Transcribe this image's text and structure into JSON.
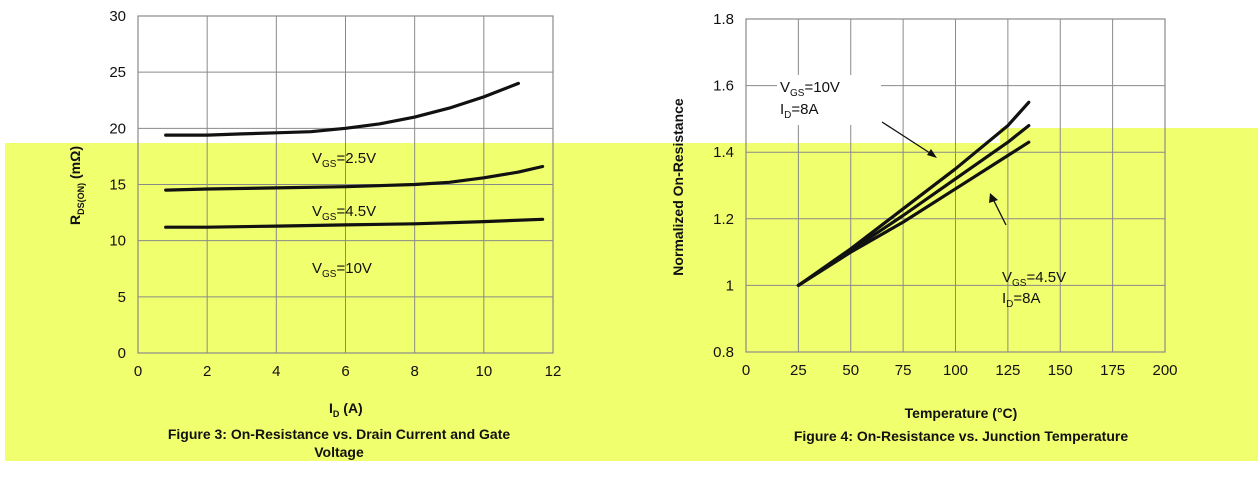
{
  "colors": {
    "highlight": "#f0ff6e",
    "line": "#111111",
    "grid": "#8a8a8a",
    "background": "#ffffff"
  },
  "chart_data": [
    {
      "type": "line",
      "xlabel_main": "I",
      "xlabel_sub": "D",
      "xlabel_unit": " (A)",
      "ylabel_main": "R",
      "ylabel_sub": "DS(ON)",
      "ylabel_unit": " (mΩ)",
      "caption_line1": "Figure 3: On-Resistance vs. Drain Current and Gate",
      "caption_line2": "Voltage",
      "xlim": [
        0,
        12
      ],
      "ylim": [
        0,
        30
      ],
      "xticks": [
        "0",
        "2",
        "4",
        "6",
        "8",
        "10",
        "12"
      ],
      "yticks": [
        "0",
        "5",
        "10",
        "15",
        "20",
        "25",
        "30"
      ],
      "grid": true,
      "series": [
        {
          "name": "VGS=2.5V",
          "x": [
            0.8,
            2,
            3,
            4,
            5,
            6,
            7,
            8,
            9,
            10,
            11
          ],
          "values": [
            19.4,
            19.4,
            19.5,
            19.6,
            19.7,
            20.0,
            20.4,
            21.0,
            21.8,
            22.8,
            24.0
          ]
        },
        {
          "name": "VGS=4.5V",
          "x": [
            0.8,
            2,
            4,
            6,
            8,
            9,
            10,
            11,
            11.7
          ],
          "values": [
            14.5,
            14.6,
            14.7,
            14.8,
            15.0,
            15.2,
            15.6,
            16.1,
            16.6
          ]
        },
        {
          "name": "VGS=10V",
          "x": [
            0.8,
            2,
            4,
            6,
            8,
            10,
            11.7
          ],
          "values": [
            11.2,
            11.2,
            11.3,
            11.4,
            11.5,
            11.7,
            11.9
          ]
        }
      ],
      "annotations": [
        {
          "main": "V",
          "sub": "GS",
          "rest": "=2.5V"
        },
        {
          "main": "V",
          "sub": "GS",
          "rest": "=4.5V"
        },
        {
          "main": "V",
          "sub": "GS",
          "rest": "=10V"
        }
      ]
    },
    {
      "type": "line",
      "xlabel": "Temperature (°C)",
      "ylabel": "Normalized On-Resistance",
      "caption": "Figure 4: On-Resistance vs. Junction Temperature",
      "xlim": [
        0,
        200
      ],
      "ylim": [
        0.8,
        1.8
      ],
      "xticks": [
        "0",
        "25",
        "50",
        "75",
        "100",
        "125",
        "150",
        "175",
        "200"
      ],
      "yticks": [
        "0.8",
        "1",
        "1.2",
        "1.4",
        "1.6",
        "1.8"
      ],
      "grid": true,
      "series": [
        {
          "name": "VGS=10V, ID=8A",
          "x": [
            25,
            50,
            75,
            100,
            125,
            135
          ],
          "values": [
            1.0,
            1.11,
            1.23,
            1.35,
            1.48,
            1.55
          ]
        },
        {
          "name": "VGS=4.5V, ID=8A (upper)",
          "x": [
            25,
            50,
            75,
            100,
            125,
            135
          ],
          "values": [
            1.0,
            1.105,
            1.21,
            1.32,
            1.43,
            1.48
          ]
        },
        {
          "name": "VGS=4.5V, ID=8A (lower)",
          "x": [
            25,
            50,
            75,
            100,
            125,
            135
          ],
          "values": [
            1.0,
            1.1,
            1.19,
            1.29,
            1.39,
            1.43
          ]
        }
      ],
      "annotations": [
        {
          "line1_main": "V",
          "line1_sub": "GS",
          "line1_rest": "=10V",
          "line2_main": "I",
          "line2_sub": "D",
          "line2_rest": "=8A"
        },
        {
          "line1_main": "V",
          "line1_sub": "GS",
          "line1_rest": "=4.5V",
          "line2_main": "I",
          "line2_sub": "D",
          "line2_rest": "=8A"
        }
      ]
    }
  ]
}
